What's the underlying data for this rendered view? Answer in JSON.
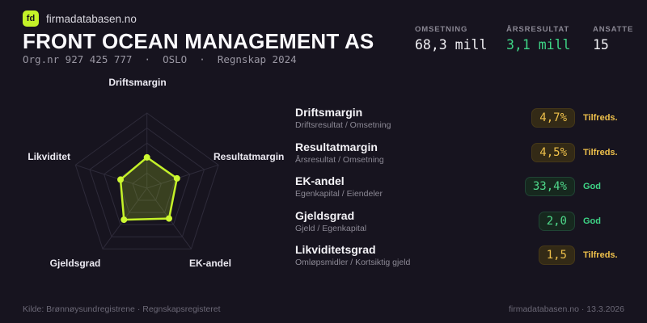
{
  "brand": {
    "logo_text": "fd",
    "name": "firmadatabasen.no"
  },
  "header": {
    "title": "FRONT OCEAN MANAGEMENT AS",
    "subtitle": "Org.nr 927 425 777  ·  OSLO  ·  Regnskap 2024"
  },
  "stats": [
    {
      "label": "OMSETNING",
      "value": "68,3 mill",
      "tone": "plain"
    },
    {
      "label": "ÅRSRESULTAT",
      "value": "3,1 mill",
      "tone": "green"
    },
    {
      "label": "ANSATTE",
      "value": "15",
      "tone": "plain"
    }
  ],
  "chart_data": {
    "type": "radar",
    "axes": [
      "Driftsmargin",
      "Resultatmargin",
      "EK-andel",
      "Gjeldsgrad",
      "Likviditet"
    ],
    "values": [
      41,
      42,
      50,
      52,
      37
    ],
    "max": 100,
    "levels": 5,
    "grid": true,
    "stroke_color": "#c4f228",
    "fill_opacity": 0.2
  },
  "metrics": [
    {
      "name": "Driftsmargin",
      "formula": "Driftsresultat / Omsetning",
      "value": "4,7%",
      "rating": "Tilfreds.",
      "status": "ok"
    },
    {
      "name": "Resultatmargin",
      "formula": "Årsresultat / Omsetning",
      "value": "4,5%",
      "rating": "Tilfreds.",
      "status": "ok"
    },
    {
      "name": "EK-andel",
      "formula": "Egenkapital / Eiendeler",
      "value": "33,4%",
      "rating": "God",
      "status": "good"
    },
    {
      "name": "Gjeldsgrad",
      "formula": "Gjeld / Egenkapital",
      "value": "2,0",
      "rating": "God",
      "status": "good"
    },
    {
      "name": "Likviditetsgrad",
      "formula": "Omløpsmidler / Kortsiktig gjeld",
      "value": "1,5",
      "rating": "Tilfreds.",
      "status": "ok"
    }
  ],
  "footer": {
    "source": "Kilde: Brønnøysundregistrene · Regnskapsregisteret",
    "site": "firmadatabasen.no · 13.3.2026"
  },
  "colors": {
    "background": "#17141f",
    "accent": "#c4f228",
    "positive_green": "#3ed586",
    "warning_amber": "#eec04b",
    "muted_text": "#8b8894"
  }
}
